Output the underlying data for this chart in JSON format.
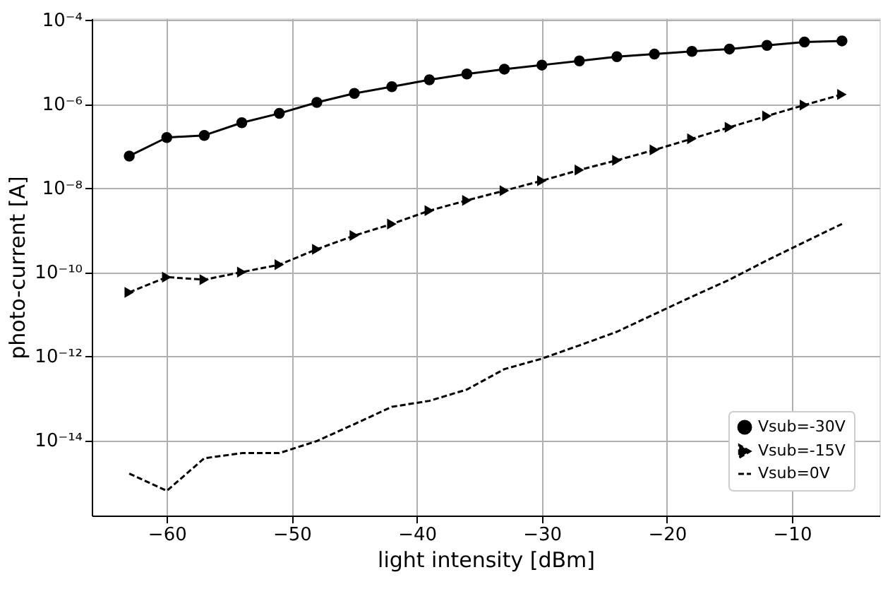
{
  "chart_data": {
    "type": "line",
    "xlabel": "light intensity [dBm]",
    "ylabel": "photo-current [A]",
    "x": [
      -63,
      -60,
      -57,
      -54,
      -51,
      -48,
      -45,
      -42,
      -39,
      -36,
      -33,
      -30,
      -27,
      -24,
      -21,
      -18,
      -15,
      -12,
      -9,
      -6
    ],
    "series": [
      {
        "name": "Vsub=-30V",
        "color": "#000000",
        "marker": "circle",
        "line_style": "solid",
        "values": [
          5.8e-08,
          1.6e-07,
          1.8e-07,
          3.6e-07,
          6e-07,
          1.1e-06,
          1.8e-06,
          2.6e-06,
          3.8e-06,
          5.2e-06,
          6.8e-06,
          8.5e-06,
          1.07e-05,
          1.35e-05,
          1.55e-05,
          1.8e-05,
          2.05e-05,
          2.5e-05,
          3e-05,
          3.2e-05
        ]
      },
      {
        "name": "Vsub=-15V",
        "color": "#000000",
        "marker": "triangle",
        "line_style": "dashed",
        "values": [
          3.3e-11,
          7.6e-11,
          6.6e-11,
          1e-10,
          1.5e-10,
          3.5e-10,
          7.4e-10,
          1.4e-09,
          2.9e-09,
          5.1e-09,
          8.7e-09,
          1.5e-08,
          2.7e-08,
          4.6e-08,
          8.1e-08,
          1.5e-07,
          2.8e-07,
          5.2e-07,
          9.5e-07,
          1.7e-06
        ]
      },
      {
        "name": "Vsub=0V",
        "color": "#000000",
        "marker": "none",
        "line_style": "dashed",
        "values": [
          1.6e-15,
          6.2e-16,
          3.7e-15,
          4.9e-15,
          4.9e-15,
          9.5e-15,
          2.4e-14,
          6.2e-14,
          8.6e-14,
          1.6e-13,
          4.9e-13,
          8.7e-13,
          1.8e-12,
          3.8e-12,
          1e-11,
          2.6e-11,
          6.6e-11,
          1.9e-10,
          5.2e-10,
          1.4e-09
        ]
      }
    ],
    "log": "y",
    "xlim": [
      -66,
      -3
    ],
    "ylim": [
      1.6e-16,
      0.00011
    ],
    "xticks": [
      -60,
      -50,
      -40,
      -30,
      -20,
      -10
    ],
    "yticks": [
      {
        "value": 1e-14,
        "label": "10⁻¹⁴"
      },
      {
        "value": 1e-12,
        "label": "10⁻¹²"
      },
      {
        "value": 1e-10,
        "label": "10⁻¹⁰"
      },
      {
        "value": 1e-08,
        "label": "10⁻⁸"
      },
      {
        "value": 1e-06,
        "label": "10⁻⁶"
      },
      {
        "value": 0.0001,
        "label": "10⁻⁴"
      }
    ],
    "grid": true,
    "legend": "bottom right"
  }
}
